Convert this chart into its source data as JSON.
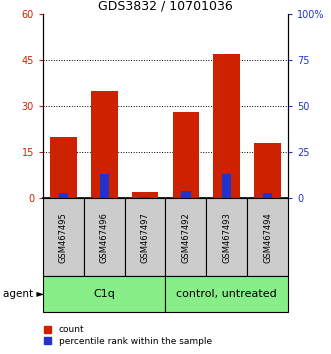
{
  "title": "GDS3832 / 10701036",
  "samples": [
    "GSM467495",
    "GSM467496",
    "GSM467497",
    "GSM467492",
    "GSM467493",
    "GSM467494"
  ],
  "count_values": [
    20,
    35,
    2,
    28,
    47,
    18
  ],
  "percentile_values": [
    3,
    13,
    0.5,
    4,
    13,
    3
  ],
  "left_ylim": [
    0,
    60
  ],
  "right_ylim": [
    0,
    100
  ],
  "left_yticks": [
    0,
    15,
    30,
    45,
    60
  ],
  "right_yticks": [
    0,
    25,
    50,
    75,
    100
  ],
  "right_yticklabels": [
    "0",
    "25",
    "50",
    "75",
    "100%"
  ],
  "left_yticklabels": [
    "0",
    "15",
    "30",
    "45",
    "60"
  ],
  "bar_color_red": "#cc2200",
  "bar_color_blue": "#2233cc",
  "group1_label": "C1q",
  "group2_label": "control, untreated",
  "group_color": "#88ee88",
  "group1_indices": [
    0,
    1,
    2
  ],
  "group2_indices": [
    3,
    4,
    5
  ],
  "agent_label": "agent",
  "legend_count": "count",
  "legend_percentile": "percentile rank within the sample",
  "bar_width": 0.65,
  "label_bg": "#cccccc"
}
